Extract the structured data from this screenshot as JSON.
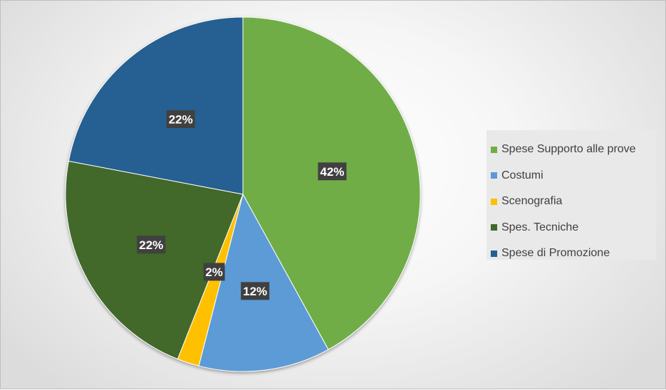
{
  "chart_data": {
    "type": "pie",
    "title": "",
    "categories": [
      "Spese Supporto alle prove",
      "Costumi",
      "Scenografia",
      "Spes. Tecniche",
      "Spese di Promozione"
    ],
    "values": [
      42,
      12,
      2,
      22,
      22
    ],
    "labels": [
      "42%",
      "12%",
      "2%",
      "22%",
      "22%"
    ],
    "colors": [
      "#70ad47",
      "#5b9bd5",
      "#ffc000",
      "#43682b",
      "#255e91"
    ],
    "start_angle_deg": 0,
    "direction": "clockwise",
    "legend_position": "right"
  }
}
